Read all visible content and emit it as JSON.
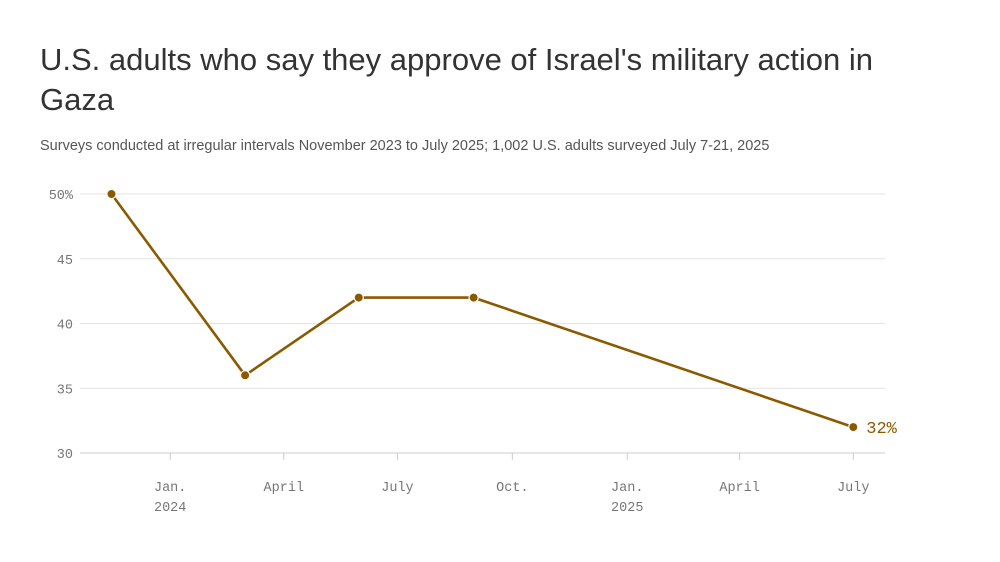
{
  "title": "U.S. adults who say they approve of Israel's military action in Gaza",
  "subtitle": "Surveys conducted at irregular intervals November 2023 to July 2025; 1,002 U.S. adults surveyed July 7-21, 2025",
  "colors": {
    "line": "#8B5A00",
    "grid": "#e3e3e3",
    "axis": "#cccccc"
  },
  "chart_data": {
    "type": "line",
    "title": "U.S. adults who say they approve of Israel's military action in Gaza",
    "subtitle": "Surveys conducted at irregular intervals November 2023 to July 2025; 1,002 U.S. adults surveyed July 7-21, 2025",
    "xlabel": "",
    "ylabel": "",
    "ylim": [
      30,
      50
    ],
    "xlim": [
      "2023-11-01",
      "2025-07-20"
    ],
    "grid": true,
    "legend": "none",
    "y_ticks": [
      {
        "value": 50,
        "label": "50%"
      },
      {
        "value": 45,
        "label": "45"
      },
      {
        "value": 40,
        "label": "40"
      },
      {
        "value": 35,
        "label": "35"
      },
      {
        "value": 30,
        "label": "30"
      }
    ],
    "x_ticks": [
      {
        "date": "2024-01-01",
        "label": "Jan.",
        "sublabel": "2024"
      },
      {
        "date": "2024-04-01",
        "label": "April",
        "sublabel": ""
      },
      {
        "date": "2024-07-01",
        "label": "July",
        "sublabel": ""
      },
      {
        "date": "2024-10-01",
        "label": "Oct.",
        "sublabel": ""
      },
      {
        "date": "2025-01-01",
        "label": "Jan.",
        "sublabel": "2025"
      },
      {
        "date": "2025-04-01",
        "label": "April",
        "sublabel": ""
      },
      {
        "date": "2025-07-01",
        "label": "July",
        "sublabel": ""
      }
    ],
    "series": [
      {
        "points": [
          {
            "date": "2023-11-15",
            "value": 50
          },
          {
            "date": "2024-03-01",
            "value": 36
          },
          {
            "date": "2024-05-31",
            "value": 42
          },
          {
            "date": "2024-08-31",
            "value": 42
          },
          {
            "date": "2025-07-01",
            "value": 32
          }
        ]
      }
    ],
    "end_label": "32%"
  }
}
